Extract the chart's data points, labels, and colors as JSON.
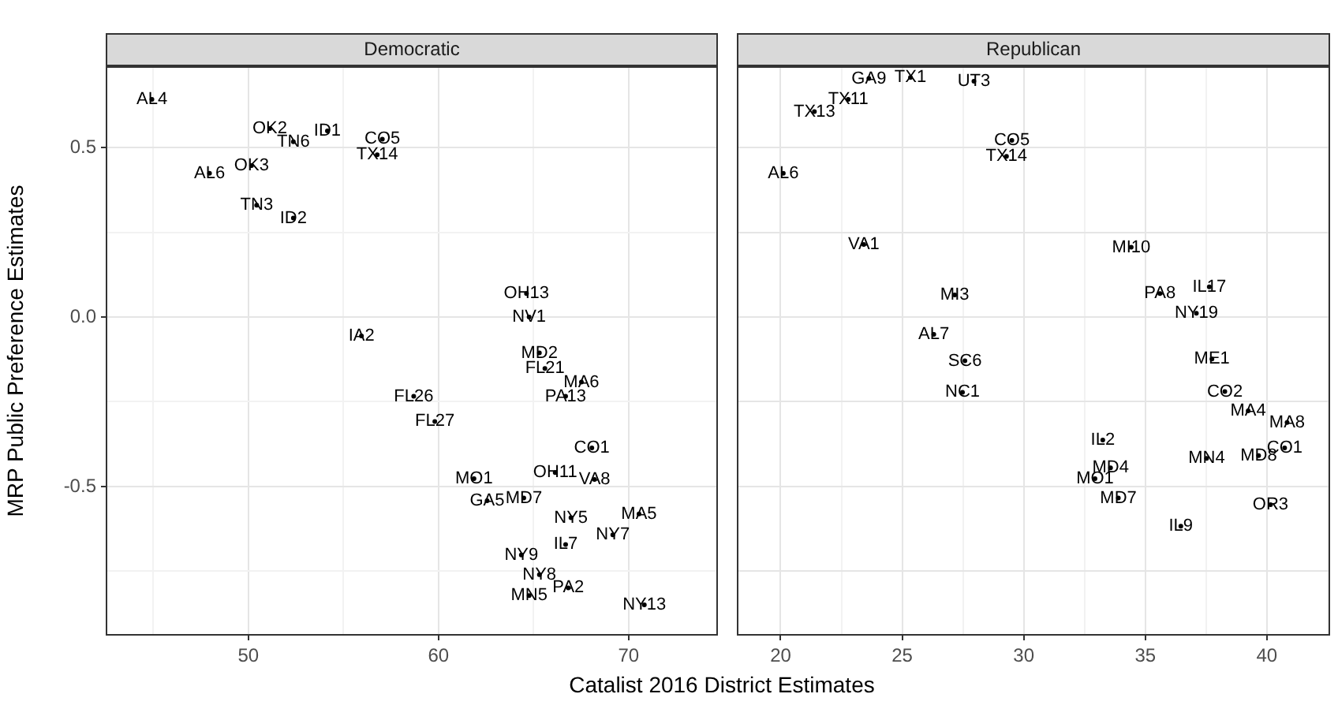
{
  "chart_data": [
    {
      "type": "scatter",
      "title": "Democratic",
      "xlabel": "Catalist 2016 District Estimates",
      "ylabel": "MRP Public Preference Estimates",
      "xlim": [
        42.5,
        74.7
      ],
      "ylim": [
        -0.94,
        0.74
      ],
      "xticks": [
        {
          "value": 45,
          "label": null
        },
        50,
        {
          "value": 55,
          "label": null
        },
        60,
        {
          "value": 65,
          "label": null
        },
        70
      ],
      "yticks": [
        {
          "value": -0.75,
          "label": null
        },
        {
          "value": -0.5,
          "label": "-0.5"
        },
        {
          "value": -0.25,
          "label": null
        },
        {
          "value": 0,
          "label": "0.0"
        },
        {
          "value": 0.25,
          "label": null
        },
        {
          "value": 0.5,
          "label": "0.5"
        }
      ],
      "grid": true,
      "series": [
        {
          "color": "#000000",
          "x": [
            44.93,
            51.13,
            54.16,
            52.37,
            57.05,
            56.78,
            47.96,
            50.17,
            50.44,
            52.37,
            55.95,
            64.63,
            64.77,
            65.31,
            65.6,
            67.52,
            66.69,
            58.7,
            59.81,
            68.07,
            68.21,
            61.87,
            66.14,
            62.56,
            64.49,
            70.55,
            66.97,
            69.17,
            66.69,
            64.36,
            65.31,
            66.83,
            64.77,
            70.83
          ],
          "values": [
            0.642,
            0.556,
            0.549,
            0.517,
            0.525,
            0.479,
            0.424,
            0.447,
            0.33,
            0.292,
            -0.056,
            0.069,
            0.0,
            -0.106,
            -0.152,
            -0.192,
            -0.234,
            -0.234,
            -0.308,
            -0.386,
            -0.479,
            -0.477,
            -0.459,
            -0.542,
            -0.534,
            -0.581,
            -0.592,
            -0.643,
            -0.671,
            -0.702,
            -0.76,
            -0.799,
            -0.822,
            -0.849
          ],
          "value_labels": [
            "AL4",
            "OK2",
            "ID1",
            "TN6",
            "CO5",
            "TX14",
            "AL6",
            "OK3",
            "TN3",
            "ID2",
            "IA2",
            "OH13",
            "NV1",
            "MD2",
            "FL21",
            "MA6",
            "PA13",
            "FL26",
            "FL27",
            "CO1",
            "VA8",
            "MO1",
            "OH11",
            "GA5",
            "MD7",
            "MA5",
            "NY5",
            "NY7",
            "IL7",
            "NY9",
            "NY8",
            "PA2",
            "MN5",
            "NY13"
          ]
        }
      ]
    },
    {
      "type": "scatter",
      "title": "Republican",
      "xlim": [
        18.2,
        42.6
      ],
      "ylim": [
        -0.94,
        0.74
      ],
      "xticks": [
        20,
        {
          "value": 22.5,
          "label": null
        },
        25,
        {
          "value": 27.5,
          "label": null
        },
        30,
        {
          "value": 32.5,
          "label": null
        },
        35,
        {
          "value": 37.5,
          "label": null
        },
        40,
        {
          "value": 42.5,
          "label": null
        }
      ],
      "yticks": [
        -0.75,
        -0.5,
        -0.25,
        0,
        0.25,
        0.5
      ],
      "grid": true,
      "tick_labels": "x",
      "series": [
        {
          "color": "#000000",
          "x": [
            23.63,
            25.34,
            27.95,
            22.78,
            21.39,
            20.11,
            29.51,
            29.29,
            23.42,
            27.16,
            26.3,
            34.42,
            37.63,
            35.6,
            37.1,
            37.74,
            27.58,
            27.48,
            38.27,
            39.23,
            40.83,
            40.73,
            39.66,
            37.52,
            33.25,
            33.57,
            32.93,
            33.89,
            36.46,
            40.15
          ],
          "values": [
            0.704,
            0.707,
            0.696,
            0.642,
            0.606,
            0.424,
            0.521,
            0.474,
            0.214,
            0.065,
            -0.051,
            0.206,
            0.089,
            0.069,
            0.011,
            -0.124,
            -0.129,
            -0.222,
            -0.22,
            -0.277,
            -0.311,
            -0.386,
            -0.409,
            -0.417,
            -0.363,
            -0.445,
            -0.477,
            -0.534,
            -0.617,
            -0.554
          ],
          "value_labels": [
            "GA9",
            "TX1",
            "UT3",
            "TX11",
            "TX13",
            "AL6",
            "CO5",
            "TX14",
            "VA1",
            "MI3",
            "AL7",
            "MI10",
            "IL17",
            "PA8",
            "NY19",
            "ME1",
            "SC6",
            "NC1",
            "CO2",
            "MA4",
            "MA8",
            "CO1",
            "MD8",
            "MN4",
            "IL2",
            "MD4",
            "MO1",
            "MD7",
            "IL9",
            "OR3"
          ]
        }
      ]
    }
  ]
}
